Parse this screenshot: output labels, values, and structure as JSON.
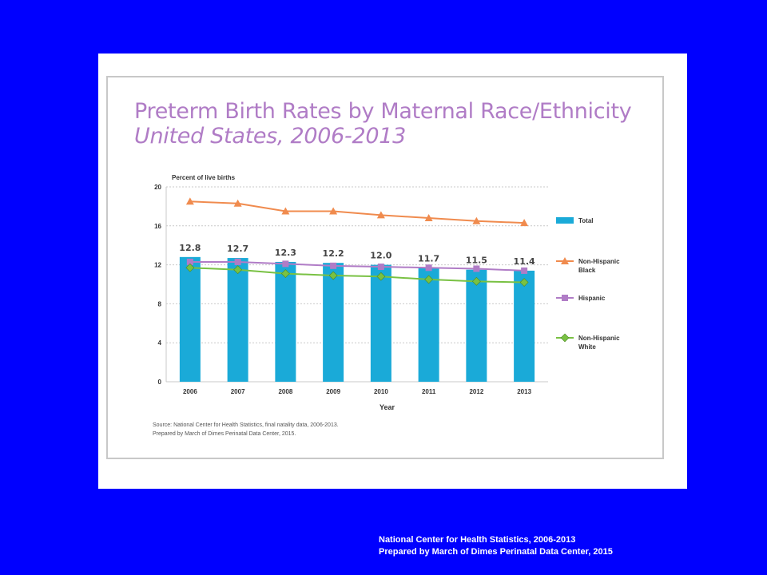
{
  "chart_data": {
    "type": "bar",
    "title": "Preterm Birth Rates by Maternal Race/Ethnicity",
    "subtitle": "United States, 2006-2013",
    "ylabel": "Percent of live births",
    "xlabel": "Year",
    "categories": [
      "2006",
      "2007",
      "2008",
      "2009",
      "2010",
      "2011",
      "2012",
      "2013"
    ],
    "ylim": [
      0,
      20
    ],
    "yticks": [
      0,
      4,
      8,
      12,
      16,
      20
    ],
    "grid": true,
    "legend_position": "right",
    "series": [
      {
        "name": "Total",
        "kind": "bar",
        "color": "#1aaad8",
        "values": [
          12.8,
          12.7,
          12.3,
          12.2,
          12.0,
          11.7,
          11.5,
          11.4
        ],
        "labels": [
          "12.8",
          "12.7",
          "12.3",
          "12.2",
          "12.0",
          "11.7",
          "11.5",
          "11.4"
        ]
      },
      {
        "name": "Non-Hispanic Black",
        "kind": "line",
        "marker": "triangle",
        "color": "#f08b4e",
        "values": [
          18.5,
          18.3,
          17.5,
          17.5,
          17.1,
          16.8,
          16.5,
          16.3
        ]
      },
      {
        "name": "Hispanic",
        "kind": "line",
        "marker": "square",
        "color": "#b07cc6",
        "values": [
          12.3,
          12.3,
          12.1,
          11.9,
          11.8,
          11.7,
          11.6,
          11.4
        ]
      },
      {
        "name": "Non-Hispanic White",
        "kind": "line",
        "marker": "diamond",
        "color": "#79c143",
        "values": [
          11.7,
          11.5,
          11.1,
          10.9,
          10.8,
          10.5,
          10.3,
          10.2
        ]
      }
    ],
    "source_lines": [
      "Source: National Center for Health Statistics, final natality data, 2006-2013.",
      "Prepared by March of Dimes Perinatal Data Center, 2015."
    ]
  },
  "footer": {
    "line1": "National Center for Health Statistics, 2006-2013",
    "line2": "Prepared by March of Dimes Perinatal Data Center, 2015"
  }
}
